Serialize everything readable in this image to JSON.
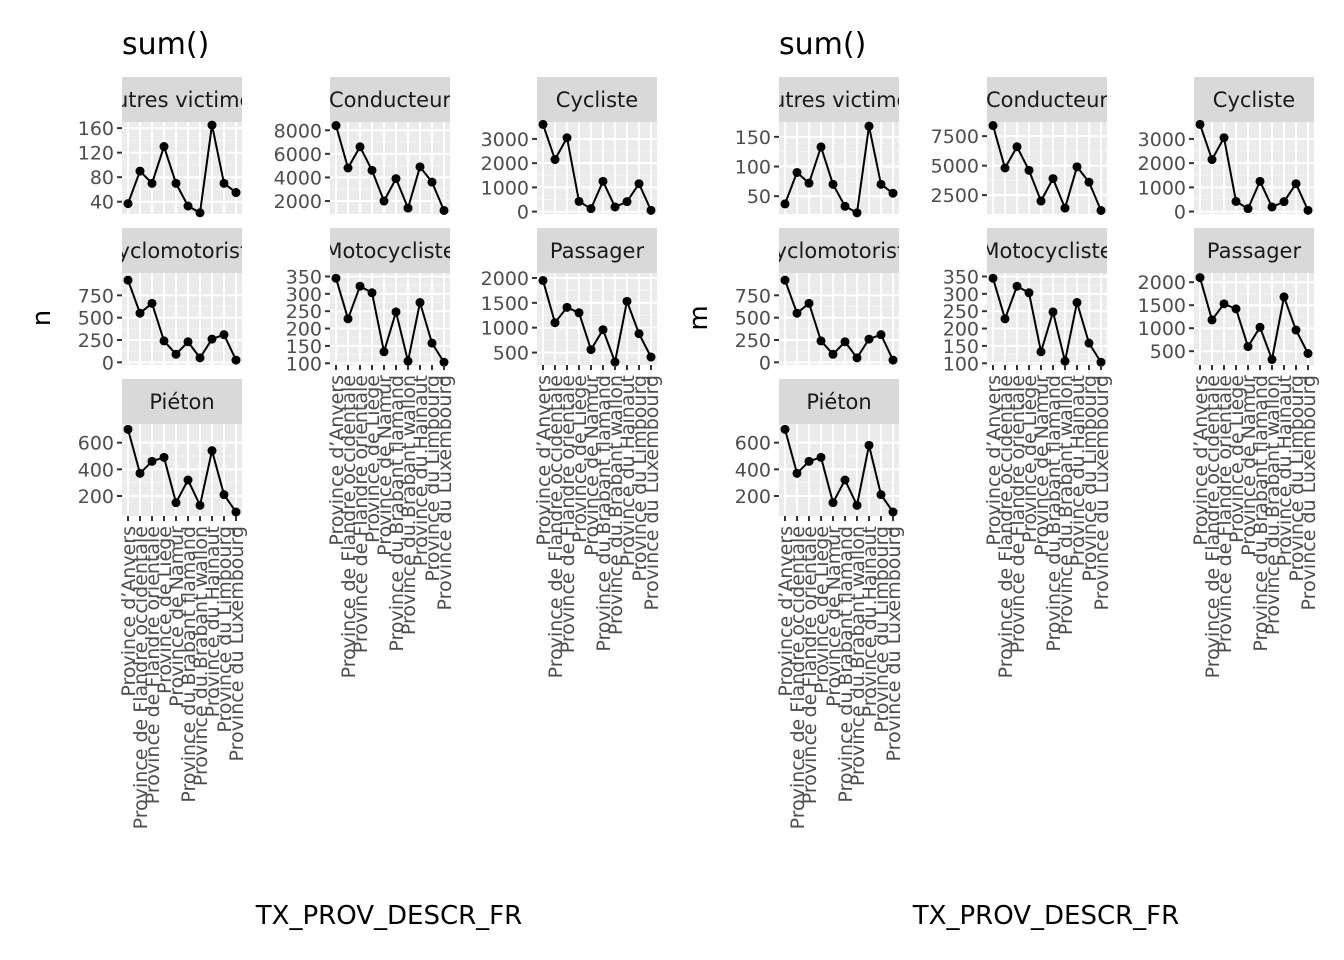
{
  "chart_data": [
    {
      "type": "line",
      "title": "sum()",
      "xlabel": "TX_PROV_DESCR_FR",
      "ylabel": "n",
      "grid": true,
      "facets": [
        {
          "name": "Autres victimes",
          "ylim": [
            20,
            170
          ],
          "yticks": [
            40,
            80,
            120,
            160
          ],
          "values": [
            37,
            90,
            70,
            130,
            70,
            33,
            22,
            165,
            70,
            55
          ]
        },
        {
          "name": "Conducteur",
          "ylim": [
            900,
            8700
          ],
          "yticks": [
            2000,
            4000,
            6000,
            8000
          ],
          "values": [
            8400,
            4800,
            6600,
            4600,
            2000,
            3900,
            1400,
            4900,
            3600,
            1200
          ]
        },
        {
          "name": "Cycliste",
          "ylim": [
            -100,
            3700
          ],
          "yticks": [
            0,
            1000,
            2000,
            3000
          ],
          "values": [
            3600,
            2150,
            3050,
            420,
            120,
            1250,
            190,
            410,
            1150,
            50
          ]
        },
        {
          "name": "Cyclomotoriste",
          "ylim": [
            -30,
            1000
          ],
          "yticks": [
            0,
            250,
            500,
            750
          ],
          "values": [
            920,
            550,
            660,
            240,
            90,
            230,
            50,
            260,
            310,
            25
          ]
        },
        {
          "name": "Motocycliste",
          "ylim": [
            95,
            360
          ],
          "yticks": [
            100,
            150,
            200,
            250,
            300,
            350
          ],
          "values": [
            345,
            228,
            322,
            303,
            133,
            248,
            106,
            275,
            158,
            103
          ]
        },
        {
          "name": "Passager",
          "ylim": [
            250,
            2100
          ],
          "yticks": [
            500,
            1000,
            1500,
            2000
          ],
          "values": [
            1950,
            1100,
            1410,
            1300,
            560,
            960,
            310,
            1530,
            880,
            410
          ]
        },
        {
          "name": "Piéton",
          "ylim": [
            50,
            740
          ],
          "yticks": [
            200,
            400,
            600
          ],
          "values": [
            700,
            370,
            460,
            490,
            150,
            320,
            130,
            540,
            210,
            80
          ]
        }
      ],
      "categories": [
        "Province d’Anvers",
        "Province de Flandre occidentale",
        "Province de Flandre orientale",
        "Province de Liège",
        "Province de Namur",
        "Province du Brabant flamand",
        "Province du Brabant wallon",
        "Province du Hainaut",
        "Province du Limbourg",
        "Province du Luxembourg"
      ]
    },
    {
      "type": "line",
      "title": "sum()",
      "xlabel": "TX_PROV_DESCR_FR",
      "ylabel": "m",
      "grid": true,
      "facets": [
        {
          "name": "Autres victimes",
          "ylim": [
            20,
            175
          ],
          "yticks": [
            50,
            100,
            150
          ],
          "values": [
            37,
            90,
            72,
            133,
            70,
            33,
            22,
            168,
            70,
            55
          ]
        },
        {
          "name": "Conducteur",
          "ylim": [
            900,
            8700
          ],
          "yticks": [
            2500,
            5000,
            7500
          ],
          "values": [
            8400,
            4800,
            6600,
            4600,
            2000,
            3900,
            1400,
            4900,
            3600,
            1200
          ]
        },
        {
          "name": "Cycliste",
          "ylim": [
            -100,
            3700
          ],
          "yticks": [
            0,
            1000,
            2000,
            3000
          ],
          "values": [
            3600,
            2150,
            3050,
            420,
            120,
            1250,
            190,
            410,
            1150,
            50
          ]
        },
        {
          "name": "Cyclomotoriste",
          "ylim": [
            -30,
            1000
          ],
          "yticks": [
            0,
            250,
            500,
            750
          ],
          "values": [
            920,
            550,
            660,
            240,
            90,
            230,
            50,
            260,
            310,
            25
          ]
        },
        {
          "name": "Motocycliste",
          "ylim": [
            95,
            360
          ],
          "yticks": [
            100,
            150,
            200,
            250,
            300,
            350
          ],
          "values": [
            345,
            228,
            322,
            303,
            133,
            248,
            106,
            275,
            158,
            103
          ]
        },
        {
          "name": "Passager",
          "ylim": [
            200,
            2200
          ],
          "yticks": [
            500,
            1000,
            1500,
            2000
          ],
          "values": [
            2100,
            1180,
            1530,
            1420,
            600,
            1020,
            320,
            1680,
            960,
            450
          ]
        },
        {
          "name": "Piéton",
          "ylim": [
            50,
            740
          ],
          "yticks": [
            200,
            400,
            600
          ],
          "values": [
            700,
            370,
            460,
            490,
            150,
            320,
            130,
            580,
            210,
            80
          ]
        }
      ],
      "categories": [
        "Province d’Anvers",
        "Province de Flandre occidentale",
        "Province de Flandre orientale",
        "Province de Liège",
        "Province de Namur",
        "Province du Brabant flamand",
        "Province du Brabant wallon",
        "Province du Hainaut",
        "Province du Limbourg",
        "Province du Luxembourg"
      ]
    }
  ]
}
